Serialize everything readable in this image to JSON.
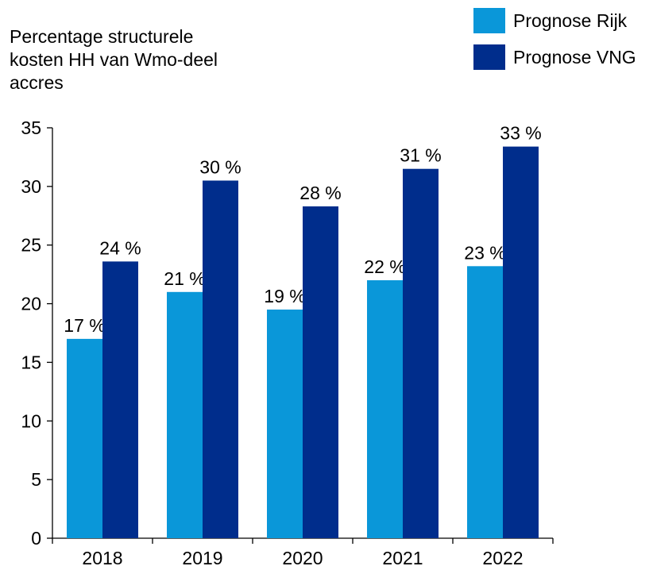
{
  "chart_data": {
    "type": "bar",
    "ylabel_lines": [
      "Percentage structurele",
      "kosten HH van Wmo-deel",
      "accres"
    ],
    "categories": [
      "2018",
      "2019",
      "2020",
      "2021",
      "2022"
    ],
    "series": [
      {
        "name": "Prognose Rijk",
        "color": "#0a97d9",
        "values": [
          17,
          21,
          19.5,
          22,
          23.2
        ],
        "labels": [
          "17 %",
          "21 %",
          "19 %",
          "22 %",
          "23 %"
        ]
      },
      {
        "name": "Prognose VNG",
        "color": "#002d8c",
        "values": [
          23.6,
          30.5,
          28.3,
          31.5,
          33.4
        ],
        "labels": [
          "24 %",
          "30 %",
          "28 %",
          "31 %",
          "33 %"
        ]
      }
    ],
    "ylim": [
      0,
      35
    ],
    "yticks": [
      0,
      5,
      10,
      15,
      20,
      25,
      30,
      35
    ],
    "grid": false,
    "legend_position": "top-right"
  }
}
